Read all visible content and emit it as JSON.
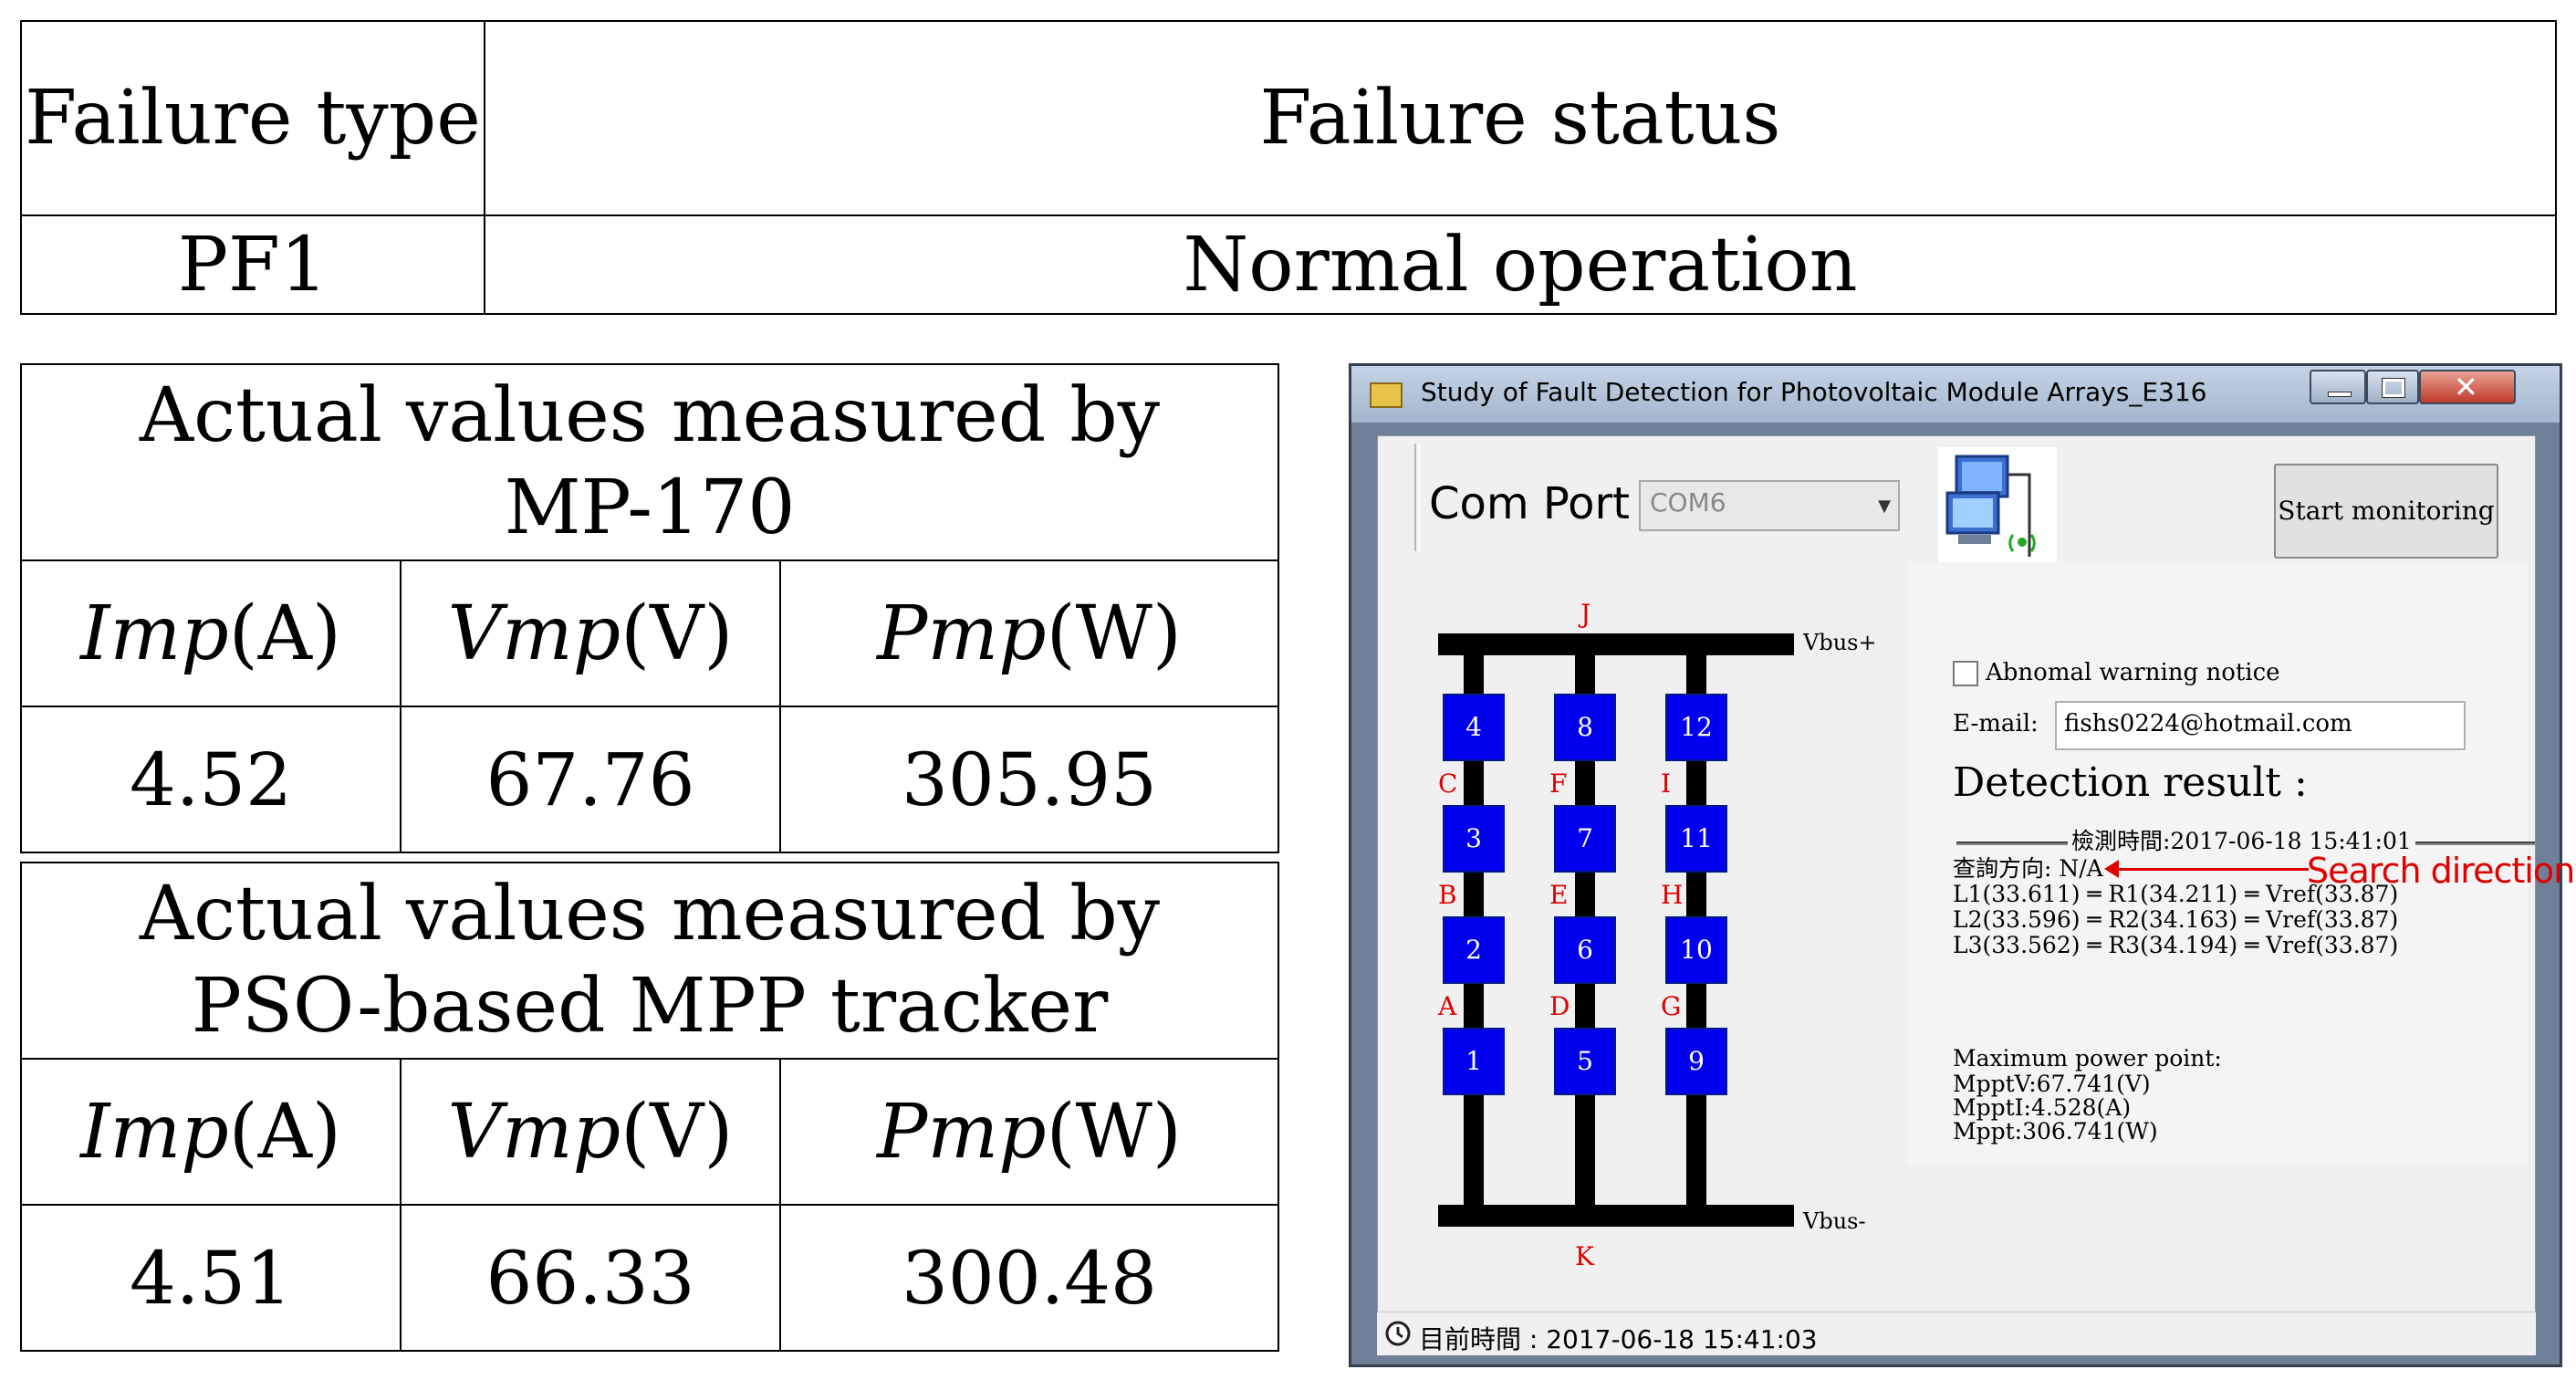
{
  "top_table": {
    "header": [
      "Failure type",
      "Failure status"
    ],
    "row": [
      "PF1",
      "Normal operation"
    ]
  },
  "mp170_table": {
    "title_line1": "Actual values measured by",
    "title_line2": "MP-170",
    "cols": [
      {
        "sym": "Imp",
        "unit": "(A)"
      },
      {
        "sym": "Vmp",
        "unit": "(V)"
      },
      {
        "sym": "Pmp",
        "unit": "(W)"
      }
    ],
    "values": [
      "4.52",
      "67.76",
      "305.95"
    ]
  },
  "pso_table": {
    "title_line1": "Actual values measured by",
    "title_line2": "PSO-based MPP tracker",
    "cols": [
      {
        "sym": "Imp",
        "unit": "(A)"
      },
      {
        "sym": "Vmp",
        "unit": "(V)"
      },
      {
        "sym": "Pmp",
        "unit": "(W)"
      }
    ],
    "values": [
      "4.51",
      "66.33",
      "300.48"
    ]
  },
  "window": {
    "title": "Study of Fault Detection for Photovoltaic Module Arrays_E316",
    "com_port_label": "Com Port :",
    "com_port_value": "COM6",
    "start_button": "Start monitoring",
    "abnormal_checkbox": "Abnomal warning notice",
    "email_label": "E-mail:",
    "email_value": "fishs0224@hotmail.com",
    "detection_title": "Detection result :",
    "detection_time": "檢測時間:2017-06-18  15:41:01",
    "query_direction": "查詢方向: N/A",
    "search_direction_annotation": "Search direction",
    "lines": [
      "L1(33.611) ═ R1(34.211) ═ Vref(33.87)",
      "L2(33.596) ═ R2(34.163) ═ Vref(33.87)",
      "L3(33.562) ═ R3(34.194) ═ Vref(33.87)"
    ],
    "mpp_title": "Maximum power point:",
    "mpp_lines": [
      "MpptV:67.741(V)",
      "MpptI:4.528(A)",
      "Mppt:306.741(W)"
    ],
    "status_time": "目前時間 : 2017-06-18  15:41:03",
    "array": {
      "bus_top_label": "Vbus+",
      "bus_bottom_label": "Vbus-",
      "top_node": "J",
      "bottom_node": "K",
      "strings": [
        {
          "modules": [
            "4",
            "3",
            "2",
            "1"
          ],
          "nodes": [
            "C",
            "B",
            "A"
          ]
        },
        {
          "modules": [
            "8",
            "7",
            "6",
            "5"
          ],
          "nodes": [
            "F",
            "E",
            "D"
          ]
        },
        {
          "modules": [
            "12",
            "11",
            "10",
            "9"
          ],
          "nodes": [
            "I",
            "H",
            "G"
          ]
        }
      ]
    }
  },
  "colors": {
    "module_blue": "#0000ee",
    "node_label_red": "#e00000",
    "titlebar": "#b4c4d9"
  }
}
